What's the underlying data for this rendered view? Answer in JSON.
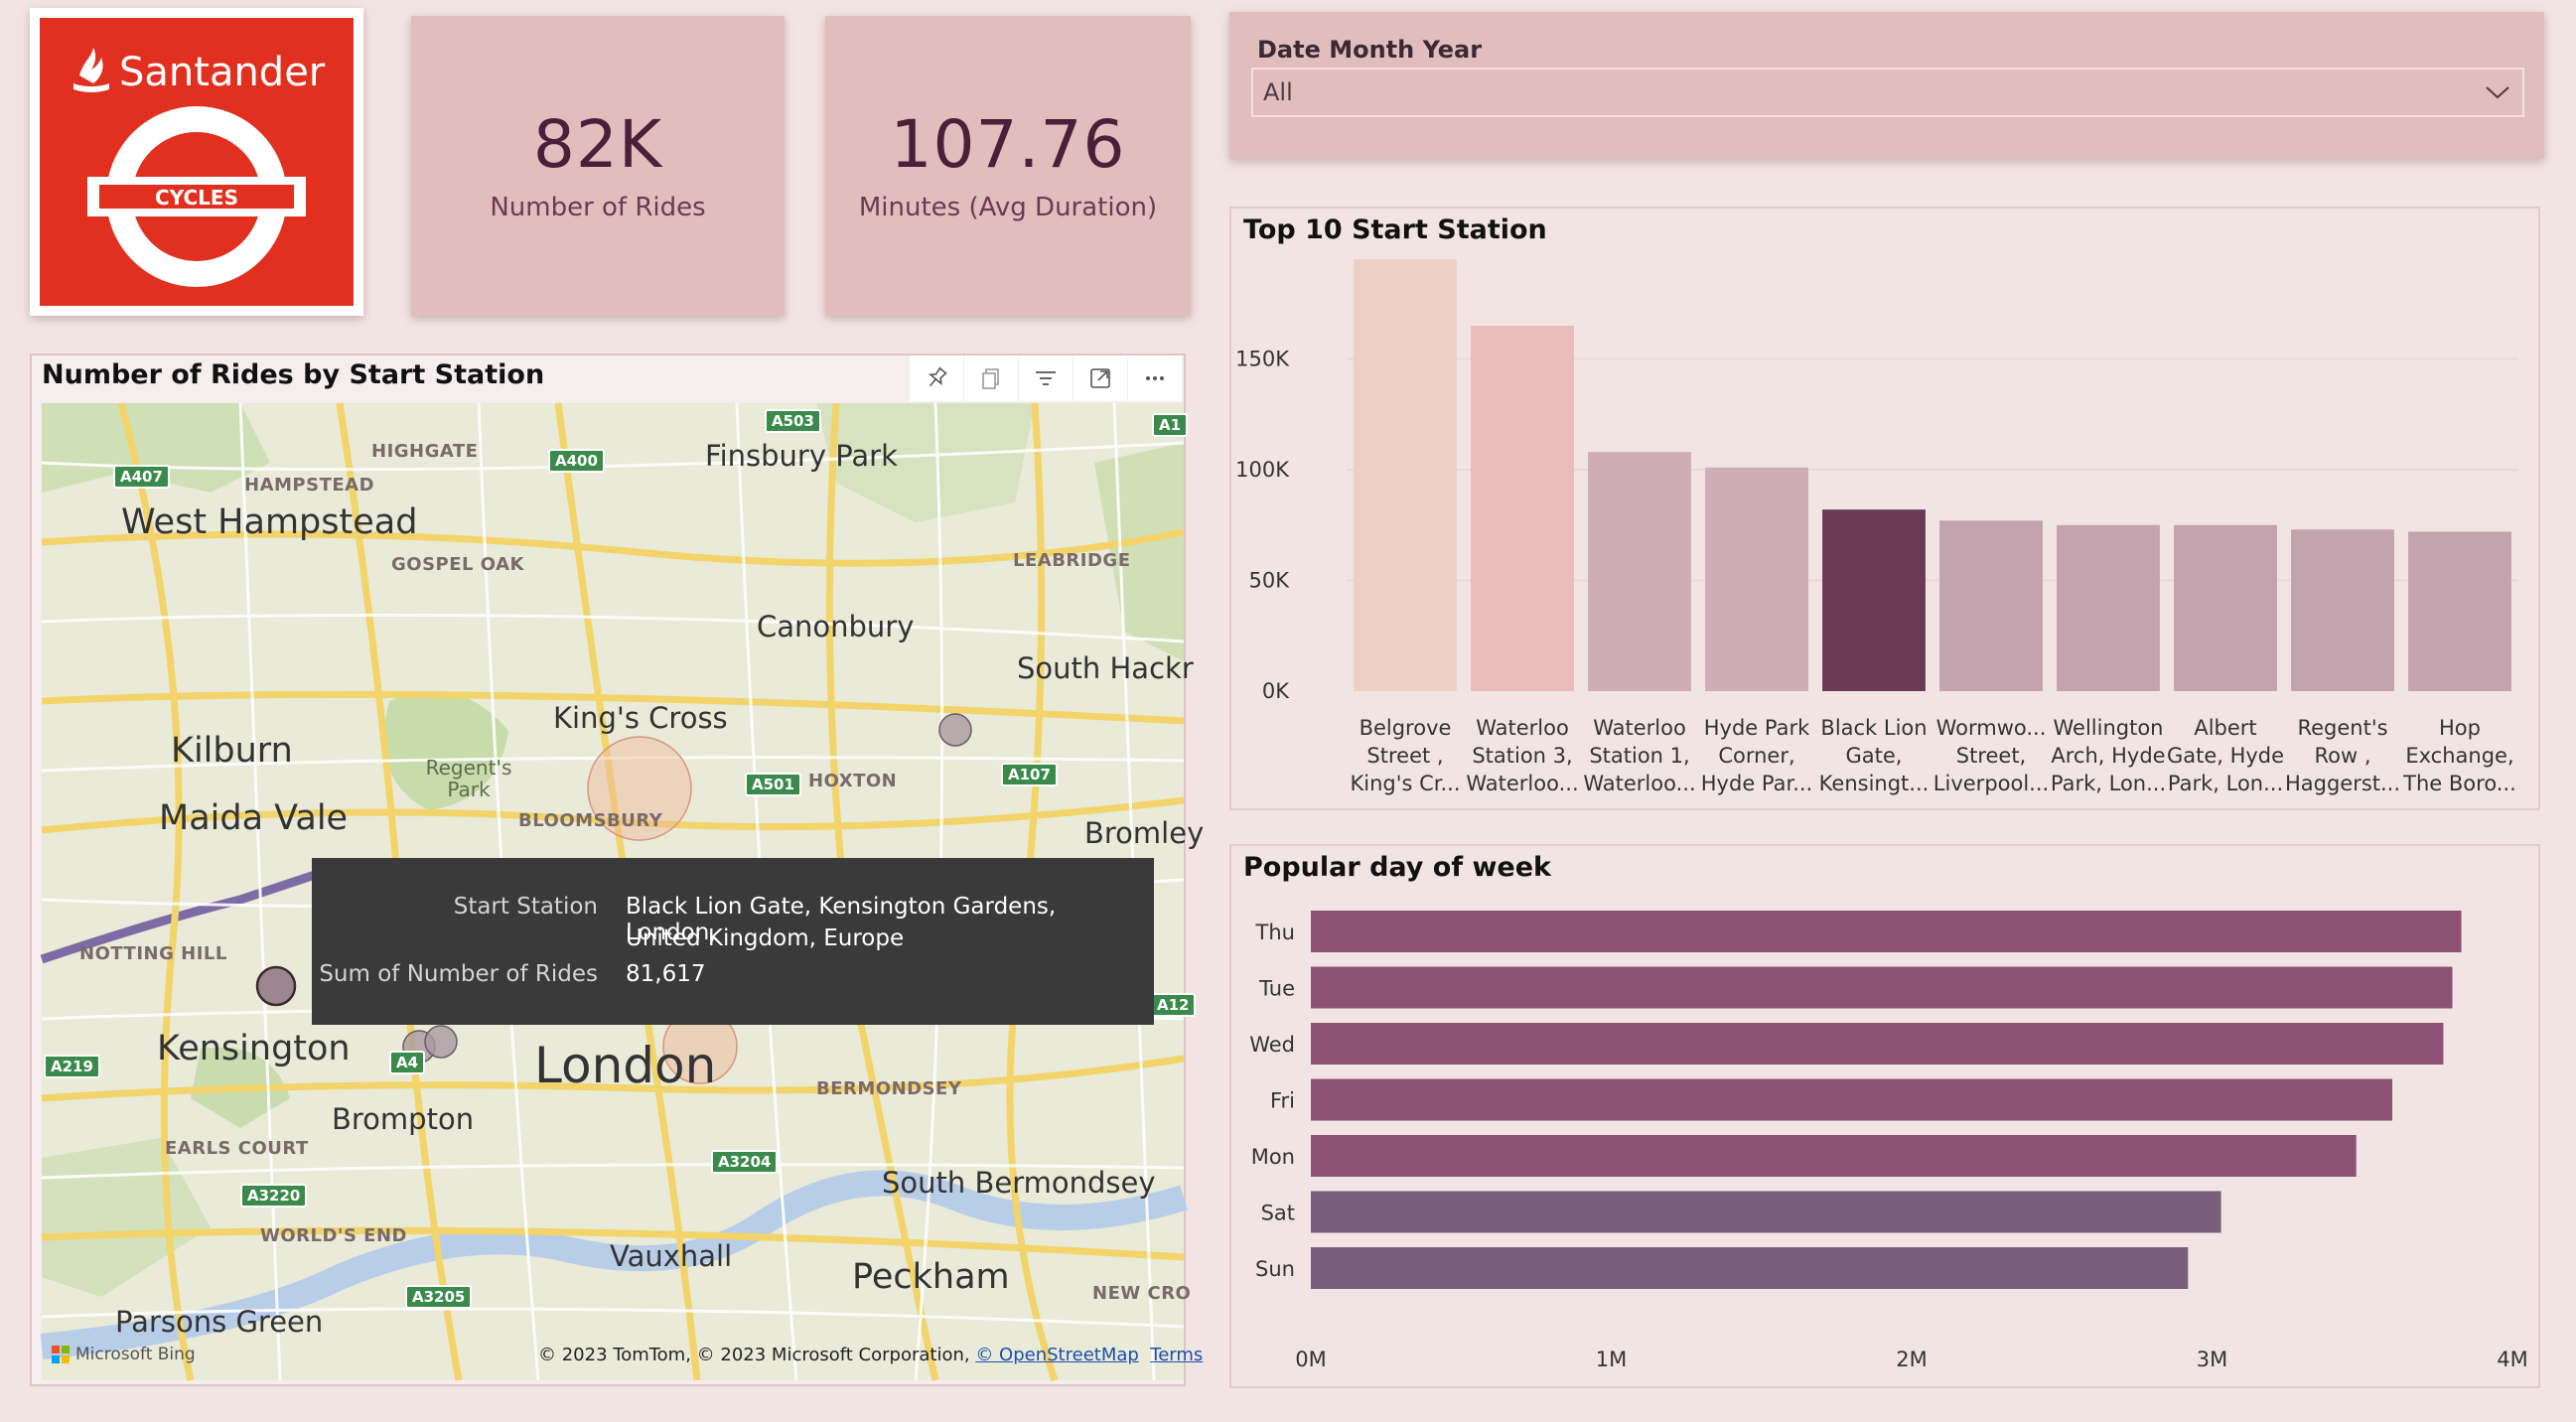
{
  "logo": {
    "brand": "Santander",
    "badge": "CYCLES"
  },
  "kpis": [
    {
      "value": "82K",
      "label": "Number of Rides"
    },
    {
      "value": "107.76",
      "label": "Minutes (Avg Duration)"
    }
  ],
  "slicer": {
    "title": "Date Month Year",
    "value": "All",
    "icon": "chevron-down-icon"
  },
  "map": {
    "title": "Number of Rides by Start Station",
    "toolbar": [
      "pin-icon",
      "copy-icon",
      "filter-icon",
      "focus-mode-icon",
      "more-options-icon"
    ],
    "places_big": [
      "West Hampstead",
      "Kilburn",
      "Maida Vale",
      "Kensington",
      "Canonbury",
      "King's Cross",
      "Finsbury Park",
      "South Hackr",
      "Bromley",
      "Brompton",
      "South Bermondsey",
      "Vauxhall",
      "Peckham",
      "Parsons Green"
    ],
    "districts": [
      "HIGHGATE",
      "HAMPSTEAD",
      "GOSPEL OAK",
      "LEABRIDGE",
      "HOXTON",
      "BLOOMSBURY",
      "NOTTING HILL",
      "EARLS COURT",
      "WORLD'S END",
      "BERMONDSEY",
      "NEW CRO"
    ],
    "park": "Regent's Park",
    "city": "London",
    "roads": [
      "A503",
      "A400",
      "A407",
      "A501",
      "A107",
      "A4",
      "A219",
      "A3204",
      "A3220",
      "A3205",
      "A1",
      "A12"
    ],
    "tooltip": {
      "key1": "Start Station",
      "val1a": "Black Lion Gate, Kensington Gardens, London,",
      "val1b": "United Kingdom, Europe",
      "key2": "Sum of Number of Rides",
      "val2": "81,617"
    },
    "bing": "Microsoft Bing",
    "credit_text": "© 2023 TomTom, © 2023 Microsoft Corporation, ",
    "credit_link1": "© OpenStreetMap",
    "credit_link2": "Terms"
  },
  "chart_data": [
    {
      "type": "bar",
      "title": "Top 10 Start Station",
      "categories": [
        [
          "Belgrove",
          "Street ,",
          "King's Cr..."
        ],
        [
          "Waterloo",
          "Station 3,",
          "Waterloo..."
        ],
        [
          "Waterloo",
          "Station 1,",
          "Waterloo..."
        ],
        [
          "Hyde Park",
          "Corner,",
          "Hyde Par..."
        ],
        [
          "Black Lion",
          "Gate,",
          "Kensingt..."
        ],
        [
          "Wormwo...",
          "Street,",
          "Liverpool..."
        ],
        [
          "Wellington",
          "Arch, Hyde",
          "Park, Lon..."
        ],
        [
          "Albert",
          "Gate, Hyde",
          "Park, Lon..."
        ],
        [
          "Regent's",
          "Row ,",
          "Haggerst..."
        ],
        [
          "Hop",
          "Exchange,",
          "The Boro..."
        ]
      ],
      "values": [
        195000,
        165000,
        108000,
        101000,
        82000,
        77000,
        75000,
        75000,
        73000,
        72000
      ],
      "colors": [
        "#efcfc4",
        "#e8bcbb",
        "#ceadb6",
        "#ceadb6",
        "#6b3a55",
        "#c2a3ae",
        "#c2a3ae",
        "#c2a3ae",
        "#c2a3ae",
        "#c2a3ae"
      ],
      "ylim": [
        0,
        200000
      ],
      "yticks": [
        0,
        50000,
        100000,
        150000
      ],
      "ytick_labels": [
        "0K",
        "50K",
        "100K",
        "150K"
      ],
      "grid": true
    },
    {
      "type": "bar",
      "orientation": "horizontal",
      "title": "Popular day of week",
      "categories": [
        "Thu",
        "Tue",
        "Wed",
        "Fri",
        "Mon",
        "Sat",
        "Sun"
      ],
      "values": [
        3830000,
        3800000,
        3770000,
        3600000,
        3480000,
        3030000,
        2920000
      ],
      "colors": [
        "#8c5274",
        "#8c5274",
        "#8c5274",
        "#8c5274",
        "#8c5274",
        "#7a5e7a",
        "#7a5e7a"
      ],
      "xlim": [
        0,
        4000000
      ],
      "xticks": [
        0,
        1000000,
        2000000,
        3000000,
        4000000
      ],
      "xtick_labels": [
        "0M",
        "1M",
        "2M",
        "3M",
        "4M"
      ]
    }
  ]
}
